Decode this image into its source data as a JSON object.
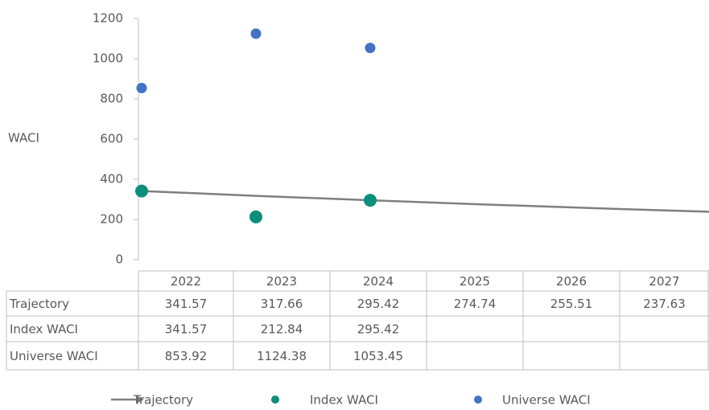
{
  "chart_data": {
    "type": "scatter",
    "y_label": "WACI",
    "categories": [
      "2022",
      "2023",
      "2024",
      "2025",
      "2026",
      "2027"
    ],
    "ylim": [
      0,
      1200
    ],
    "yticks": [
      0,
      200,
      400,
      600,
      800,
      1000,
      1200
    ],
    "series": [
      {
        "name": "Trajectory",
        "color": "#7f7f7f",
        "kind": "line",
        "values": [
          341.57,
          317.66,
          295.42,
          274.74,
          255.51,
          237.63
        ]
      },
      {
        "name": "Index WACI",
        "color": "#0b8f7b",
        "kind": "marker",
        "values": [
          341.57,
          212.84,
          295.42,
          null,
          null,
          null
        ]
      },
      {
        "name": "Universe WACI",
        "color": "#4472c4",
        "kind": "marker",
        "values": [
          853.92,
          1124.38,
          1053.45,
          null,
          null,
          null
        ]
      }
    ]
  }
}
